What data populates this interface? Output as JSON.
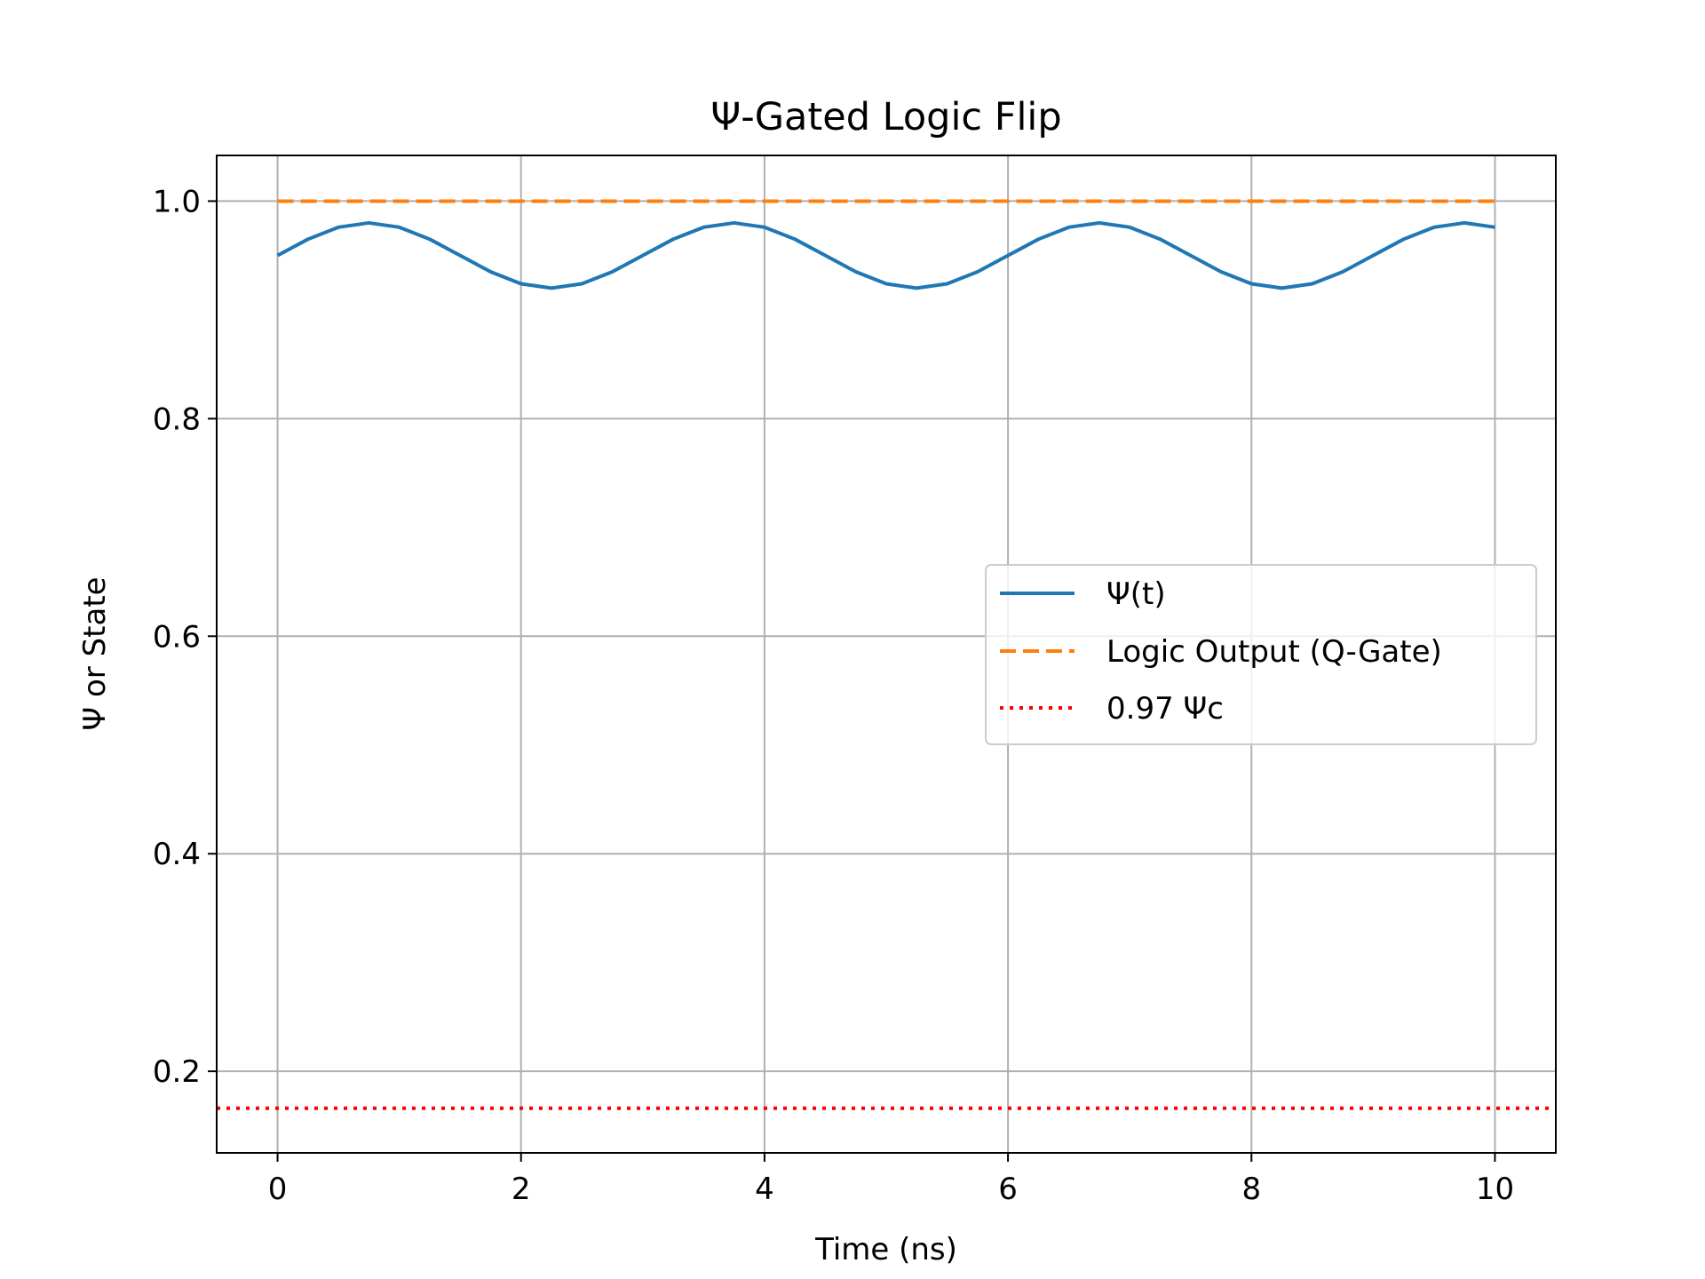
{
  "chart_data": {
    "type": "line",
    "title": "Ψ-Gated Logic Flip",
    "xlabel": "Time (ns)",
    "ylabel": "Ψ or State",
    "xlim": [
      -0.5,
      10.5
    ],
    "ylim": [
      0.125,
      1.042
    ],
    "xticks": [
      0,
      2,
      4,
      6,
      8,
      10
    ],
    "xtick_labels": [
      "0",
      "2",
      "4",
      "6",
      "8",
      "10"
    ],
    "yticks": [
      0.2,
      0.4,
      0.6,
      0.8,
      1.0
    ],
    "ytick_labels": [
      "0.2",
      "0.4",
      "0.6",
      "0.8",
      "1.0"
    ],
    "grid": true,
    "legend_position": "center-right",
    "series": [
      {
        "name": "Ψ(t)",
        "style": "solid",
        "color": "#1f77b4",
        "x": [
          0,
          0.25,
          0.5,
          0.75,
          1,
          1.25,
          1.5,
          1.75,
          2,
          2.25,
          2.5,
          2.75,
          3,
          3.25,
          3.5,
          3.75,
          4,
          4.25,
          4.5,
          4.75,
          5,
          5.25,
          5.5,
          5.75,
          6,
          6.25,
          6.5,
          6.75,
          7,
          7.25,
          7.5,
          7.75,
          8,
          8.25,
          8.5,
          8.75,
          9,
          9.25,
          9.5,
          9.75,
          10
        ],
        "y": [
          0.95,
          0.965,
          0.976,
          0.98,
          0.976,
          0.965,
          0.95,
          0.935,
          0.924,
          0.92,
          0.924,
          0.935,
          0.95,
          0.965,
          0.976,
          0.98,
          0.976,
          0.965,
          0.95,
          0.935,
          0.924,
          0.92,
          0.924,
          0.935,
          0.95,
          0.965,
          0.976,
          0.98,
          0.976,
          0.965,
          0.95,
          0.935,
          0.924,
          0.92,
          0.924,
          0.935,
          0.95,
          0.965,
          0.976,
          0.98,
          0.976
        ]
      },
      {
        "name": "Logic Output (Q-Gate)",
        "style": "dashed",
        "color": "#ff7f0e",
        "x": [
          0,
          10
        ],
        "y": [
          1.0,
          1.0
        ]
      },
      {
        "name": "0.97 Ψc",
        "style": "dotted",
        "color": "#ff0000",
        "type": "hline",
        "y": 0.166
      }
    ]
  }
}
